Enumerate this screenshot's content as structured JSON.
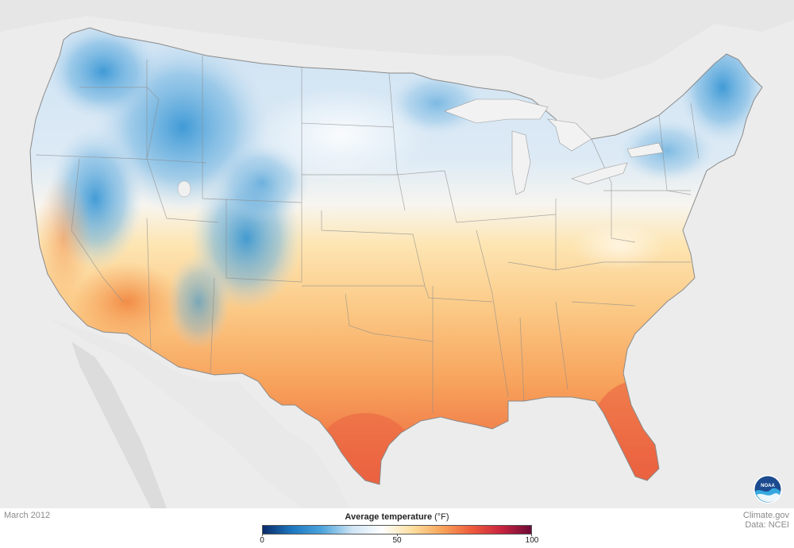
{
  "map": {
    "period_label": "March 2012",
    "credit_line1": "Climate.gov",
    "credit_line2": "Data: NCEI",
    "legend": {
      "title_bold": "Average temperature",
      "title_unit": " (°F)",
      "min": 0,
      "max": 100,
      "ticks": [
        "0",
        "50",
        "100"
      ],
      "colors": [
        "#0b2c6a",
        "#1e78c0",
        "#4ea5dc",
        "#cfe4f4",
        "#ffffff",
        "#fddfa0",
        "#f8a55a",
        "#ee5b3c",
        "#c8243f",
        "#6b0a36"
      ]
    },
    "logo": {
      "icon": "noaa-logo-icon",
      "text": "NOAA"
    },
    "colors": {
      "background_land": "#e4e4e4",
      "lakes": "#f4f4f4",
      "cold": "#3a9ad6",
      "cool": "#bcd8ee",
      "neutral": "#f6f3ee",
      "warm": "#fbc985",
      "hot": "#f28d52",
      "hottest": "#ea5d3f"
    }
  }
}
